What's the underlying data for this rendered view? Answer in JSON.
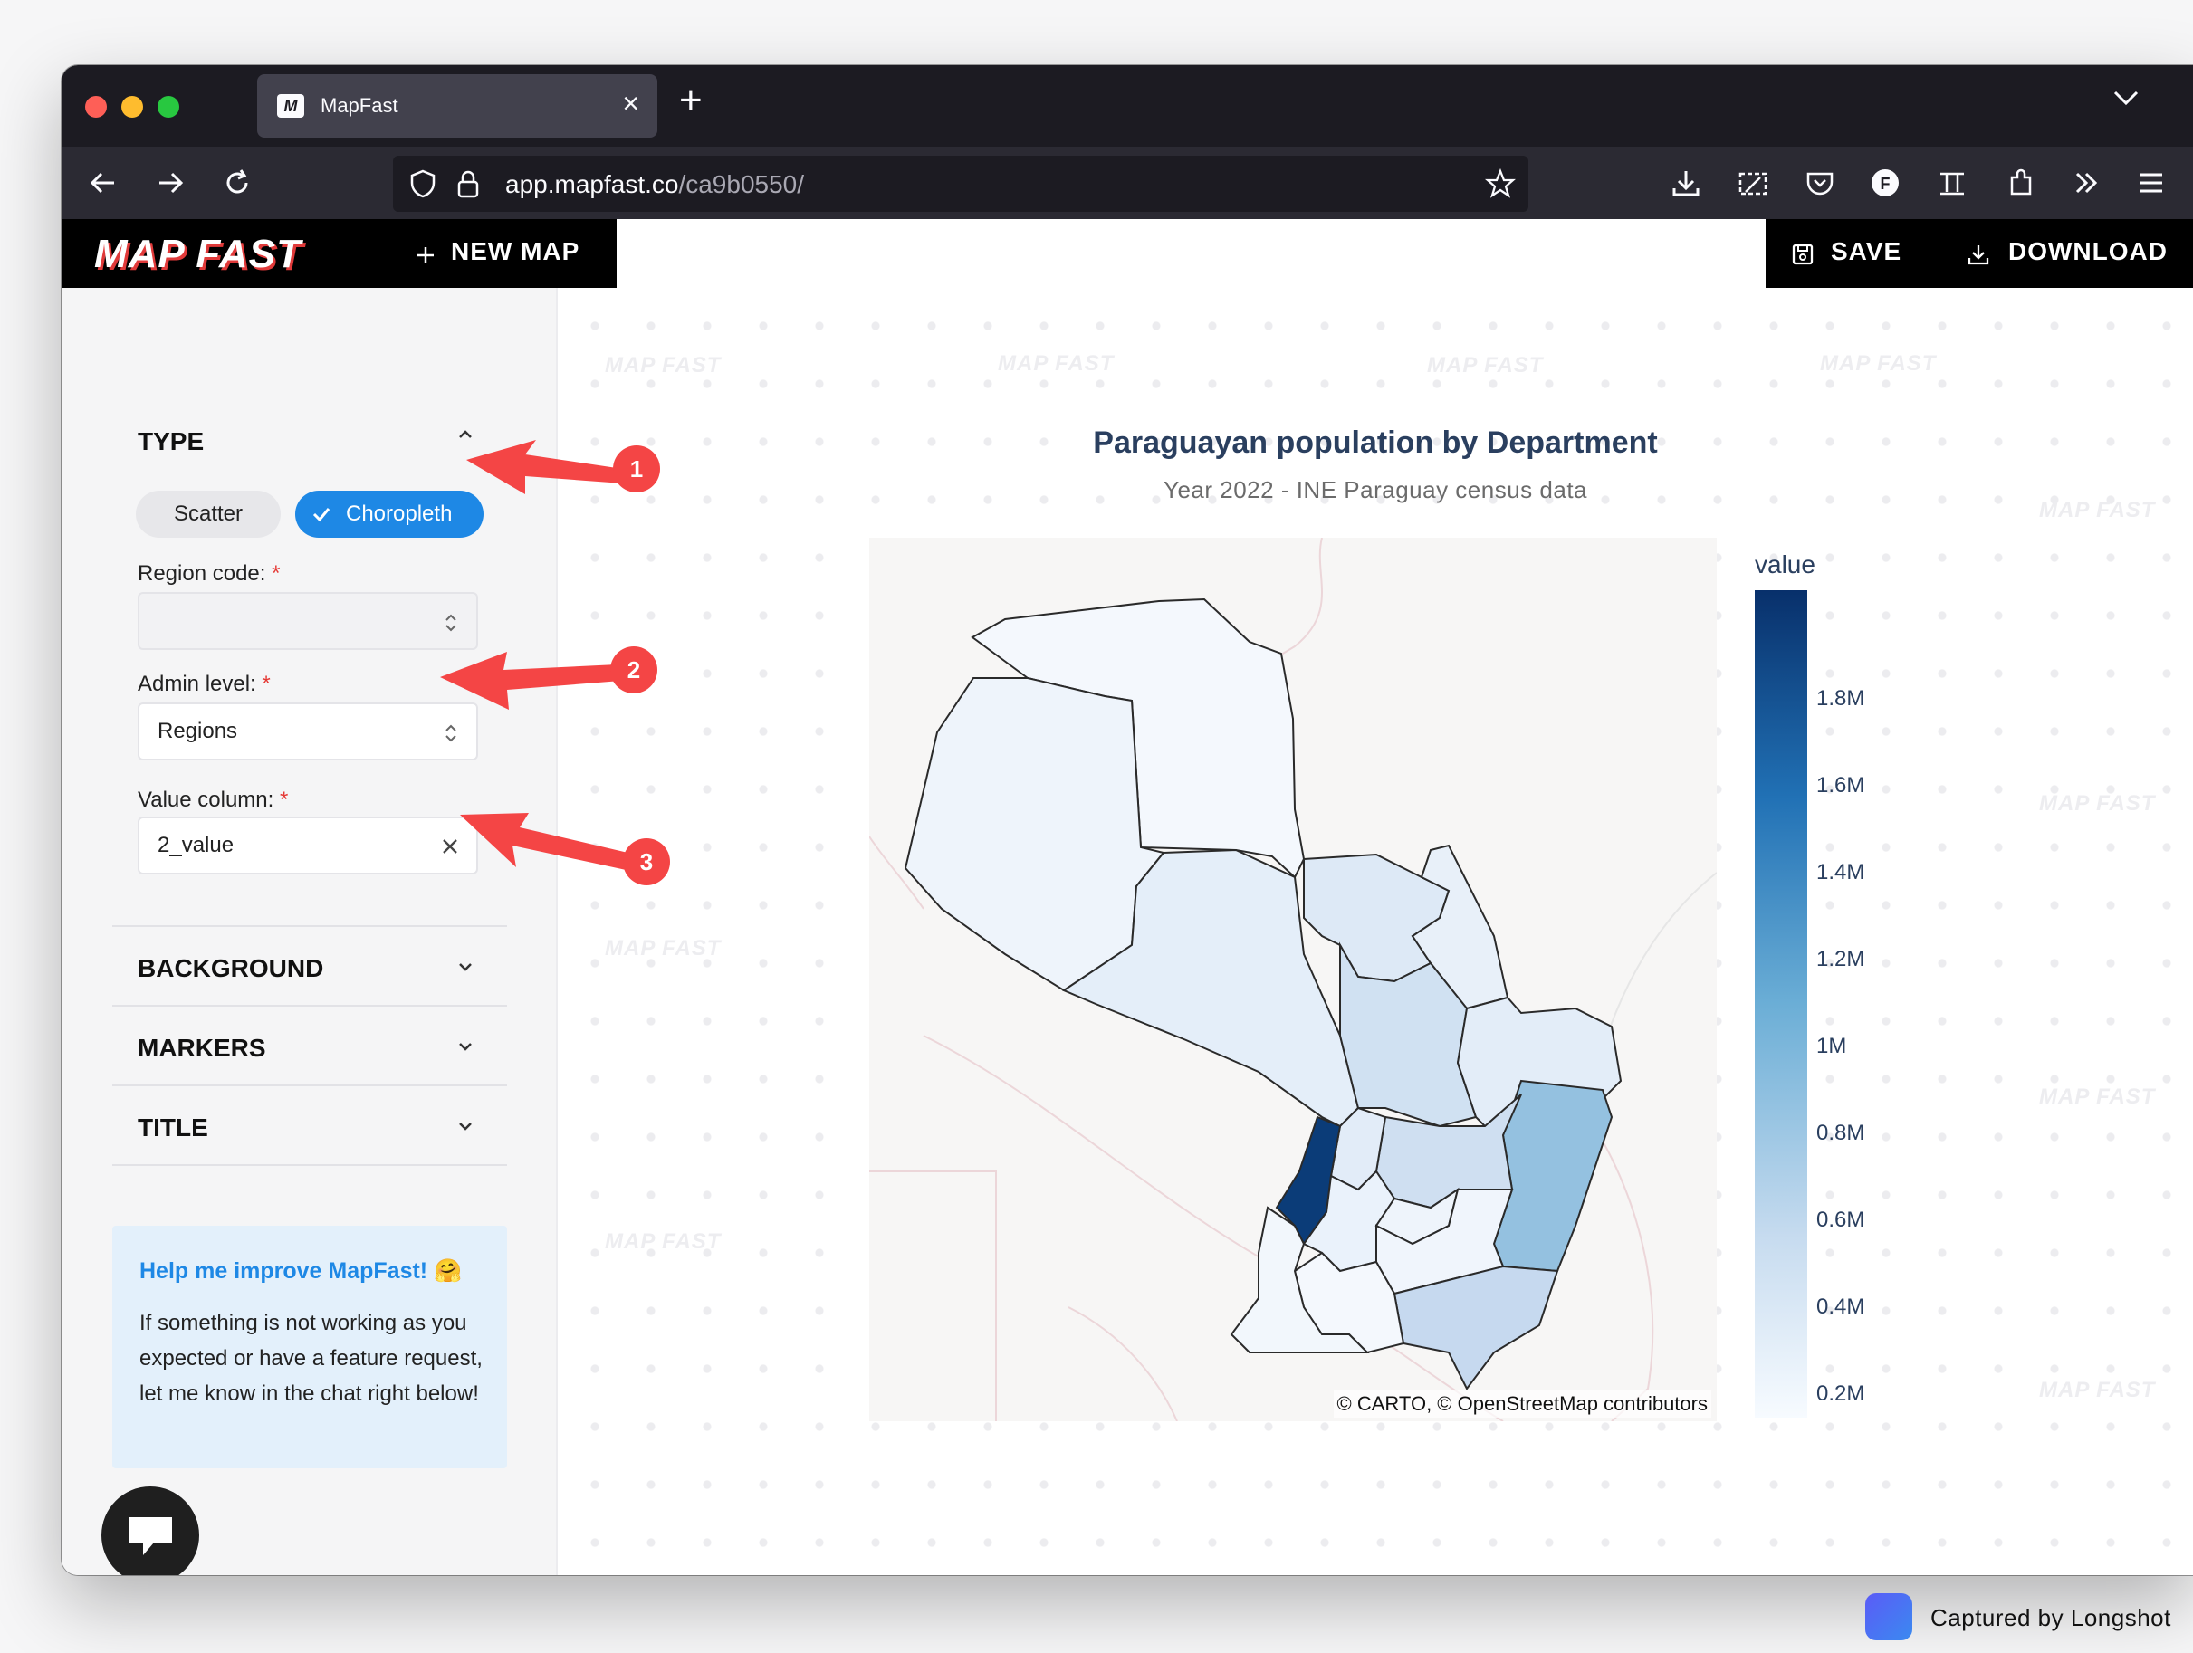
{
  "browser": {
    "tab_title": "MapFast",
    "url_host": "app.mapfast.co",
    "url_path": "/ca9b0550/",
    "tab_close": "×",
    "new_tab": "+"
  },
  "appbar": {
    "logo": "MAP FAST",
    "new_map_label": "NEW MAP",
    "save_label": "SAVE",
    "download_label": "DOWNLOAD"
  },
  "sidebar": {
    "type_title": "TYPE",
    "type_options": [
      "Scatter",
      "Choropleth"
    ],
    "selected_type": "Choropleth",
    "region_code": {
      "label": "Region code:",
      "required": "*",
      "value": ""
    },
    "admin_level": {
      "label": "Admin level:",
      "required": "*",
      "value": "Regions"
    },
    "value_column": {
      "label": "Value column:",
      "required": "*",
      "value": "2_value"
    },
    "sections": [
      "BACKGROUND",
      "MARKERS",
      "TITLE"
    ],
    "help": {
      "title": "Help me improve MapFast! 🤗",
      "body": "If something is not working as you expected or have a feature request, let me know in the chat right below!"
    }
  },
  "map": {
    "title": "Paraguayan population by Department",
    "subtitle": "Year 2022 - INE Paraguay census data",
    "attribution": "© CARTO, © OpenStreetMap contributors",
    "colorbar": {
      "title": "value",
      "ticks": [
        "1.8M",
        "1.6M",
        "1.4M",
        "1.2M",
        "1M",
        "0.8M",
        "0.6M",
        "0.4M",
        "0.2M"
      ],
      "colors": [
        "#08306b",
        "#2171b5",
        "#6baed6",
        "#c6dbef",
        "#f7fbff"
      ]
    },
    "watermark": "MAP FAST"
  },
  "annotations": [
    "1",
    "2",
    "3"
  ],
  "capture": {
    "label": "Captured by Longshot"
  },
  "colors": {
    "accent": "#1e88e5",
    "annotation": "#f44545",
    "chrome": "#1c1b22"
  }
}
